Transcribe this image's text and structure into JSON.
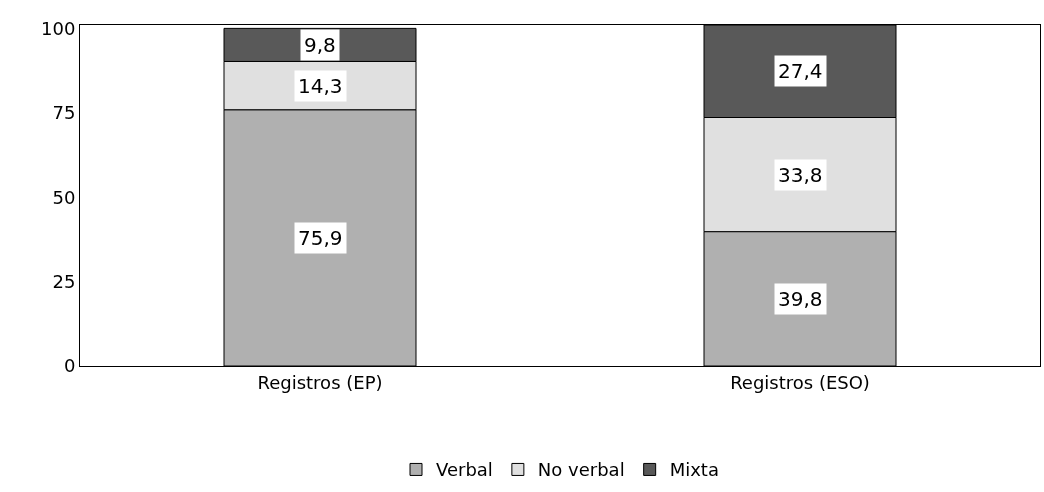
{
  "chart_data": {
    "type": "bar",
    "stacked": true,
    "categories": [
      "Registros (EP)",
      "Registros (ESO)"
    ],
    "series": [
      {
        "name": "Verbal",
        "color": "#b0b0b0",
        "values": [
          75.9,
          39.8
        ],
        "value_labels": [
          "75,9",
          "39,8"
        ]
      },
      {
        "name": "No verbal",
        "color": "#e0e0e0",
        "values": [
          14.3,
          33.8
        ],
        "value_labels": [
          "14,3",
          "33,8"
        ]
      },
      {
        "name": "Mixta",
        "color": "#595959",
        "values": [
          9.8,
          27.4
        ],
        "value_labels": [
          "9,8",
          "27,4"
        ]
      }
    ],
    "ylim": [
      0,
      101
    ],
    "yticks": [
      0,
      25,
      50,
      75,
      100
    ],
    "legend": "bottom"
  }
}
